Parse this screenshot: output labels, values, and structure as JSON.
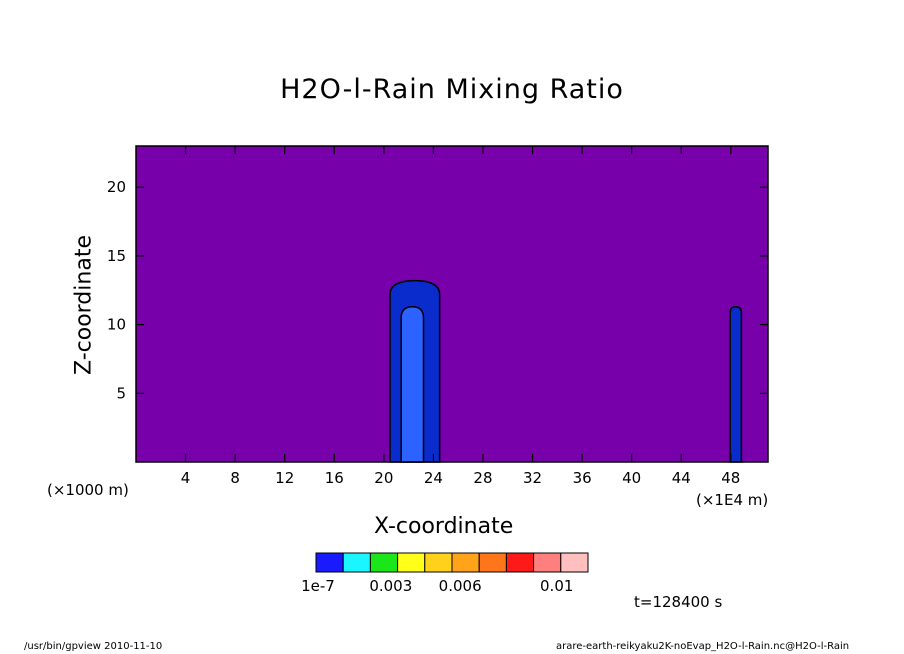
{
  "chart_data": {
    "type": "heatmap",
    "title": "H2O-l-Rain Mixing Ratio",
    "xlabel": "X-coordinate",
    "ylabel": "Z-coordinate",
    "x_unit_left": "(×1000 m)",
    "x_unit_right": "(×1E4 m)",
    "x_ticks": [
      4,
      8,
      12,
      16,
      20,
      24,
      28,
      32,
      36,
      40,
      44,
      48
    ],
    "y_ticks": [
      5,
      10,
      15,
      20
    ],
    "xlim": [
      0,
      51
    ],
    "ylim": [
      0,
      23
    ],
    "background_color": "#7700aa",
    "features": [
      {
        "level": "1e-7",
        "color": "#0b2ccc",
        "x_center": 22.5,
        "x_halfwidth": 2.0,
        "z_top": 13.2
      },
      {
        "level": "0.0015",
        "color": "#2c62ff",
        "x_center": 22.3,
        "x_halfwidth": 0.9,
        "z_top": 11.3
      },
      {
        "level": "1e-7",
        "color": "#0b2ccc",
        "x_center": 48.4,
        "x_halfwidth": 0.45,
        "z_top": 11.3
      }
    ],
    "colorbar": {
      "colors": [
        "#1a1aff",
        "#1af5ff",
        "#1ae61a",
        "#ffff1a",
        "#ffd11a",
        "#ffa31a",
        "#ff751a",
        "#ff1a1a",
        "#ff7f7f",
        "#ffbfbf"
      ],
      "labels": [
        "1e-7",
        "0.003",
        "0.006",
        "0.01"
      ]
    }
  },
  "time_label": "t=128400 s",
  "footer": {
    "left": "/usr/bin/gpview  2010-11-10",
    "right": "arare-earth-reikyaku2K-noEvap_H2O-l-Rain.nc@H2O-l-Rain"
  }
}
